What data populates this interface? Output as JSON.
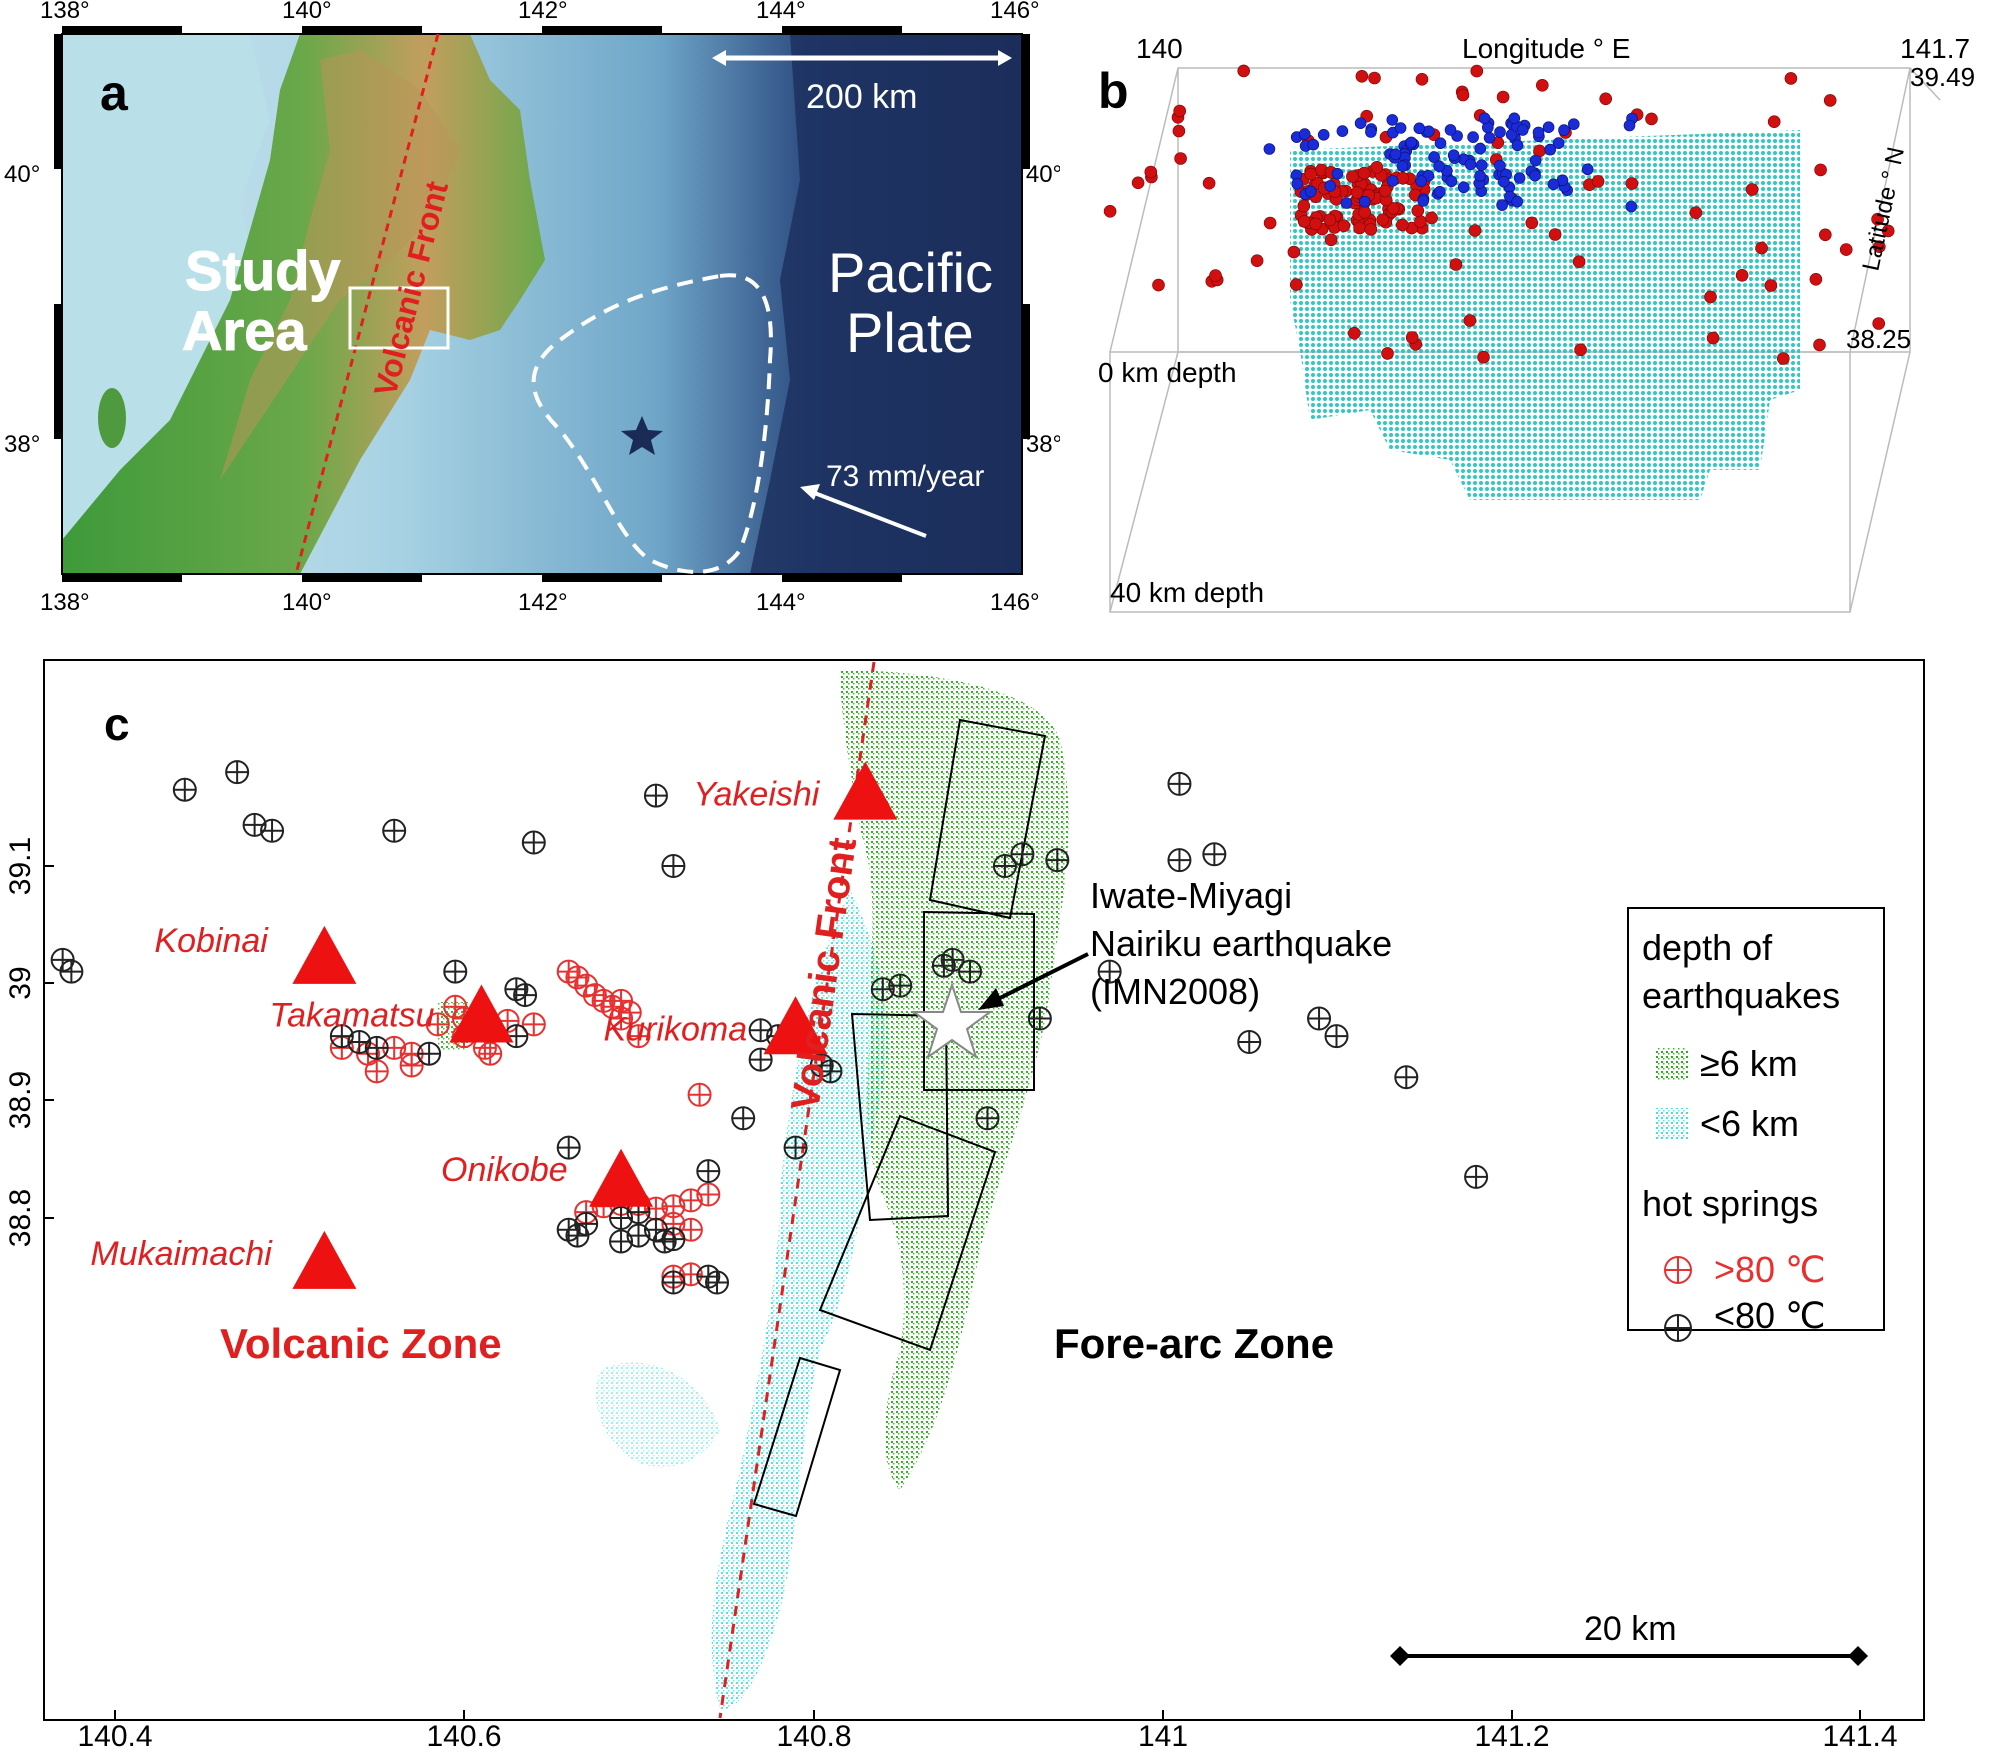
{
  "panel_a": {
    "label": "a",
    "top_ticks": [
      "138°",
      "140°",
      "142°",
      "144°",
      "146°"
    ],
    "bottom_ticks": [
      "138°",
      "140°",
      "142°",
      "144°",
      "146°"
    ],
    "left_ticks": [
      "40°",
      "38°"
    ],
    "right_ticks": [
      "40°",
      "38°"
    ],
    "scale_label": "200 km",
    "study_area_line1": "Study",
    "study_area_line2": "Area",
    "volcanic_front": "Volcanic Front",
    "pacific_line1": "Pacific",
    "pacific_line2": "Plate",
    "plate_rate": "73 mm/year",
    "colors": {
      "sea_deep": "#1a2b55",
      "sea_shelf": "#a9d4e6",
      "land_low": "#3f8f3a",
      "land_high": "#c9a35f",
      "front": "#e02020"
    }
  },
  "panel_b": {
    "label": "b",
    "lon_left": "140",
    "lon_title": "Longitude ° E",
    "lon_right": "141.7",
    "lat_top": "39.49",
    "lat_title": "Latitude ° N",
    "lat_bottom": "38.25",
    "depth_top": "0 km depth",
    "depth_bottom": "40 km depth",
    "colors": {
      "grid": "#20c0c0",
      "red": "#d01010",
      "blue": "#1a2bd8"
    }
  },
  "panel_c": {
    "label": "c",
    "x_ticks": [
      "140.4",
      "140.6",
      "140.8",
      "141",
      "141.2",
      "141.4"
    ],
    "y_ticks": [
      "39.1",
      "39",
      "38.9",
      "38.8"
    ],
    "volcanoes": [
      {
        "name": "Yakeishi",
        "lon": 140.83,
        "lat": 39.16
      },
      {
        "name": "Kobinai",
        "lon": 140.52,
        "lat": 39.02
      },
      {
        "name": "Takamatsu",
        "lon": 140.61,
        "lat": 38.97
      },
      {
        "name": "Kurikoma",
        "lon": 140.79,
        "lat": 38.96
      },
      {
        "name": "Onikobe",
        "lon": 140.69,
        "lat": 38.83
      },
      {
        "name": "Mukaimachi",
        "lon": 140.52,
        "lat": 38.76
      }
    ],
    "volcanic_front": "Volcanic Front",
    "volcanic_zone": "Volcanic Zone",
    "forearc_zone": "Fore-arc Zone",
    "eq_line1": "Iwate-Miyagi",
    "eq_line2": "Nairiku earthquake",
    "eq_line3": "(IMN2008)",
    "scale_label": "20 km",
    "legend": {
      "title1": "depth of",
      "title2": "earthquakes",
      "deep": "≥6 km",
      "shallow": "<6 km",
      "springs_title": "hot springs",
      "hot": ">80 ℃",
      "warm": "<80 ℃"
    },
    "colors": {
      "deep": "#2faa1f",
      "shallow": "#3fe0e0",
      "volcano": "#ee1111",
      "hot": "#e83030",
      "warm": "#222222"
    }
  }
}
